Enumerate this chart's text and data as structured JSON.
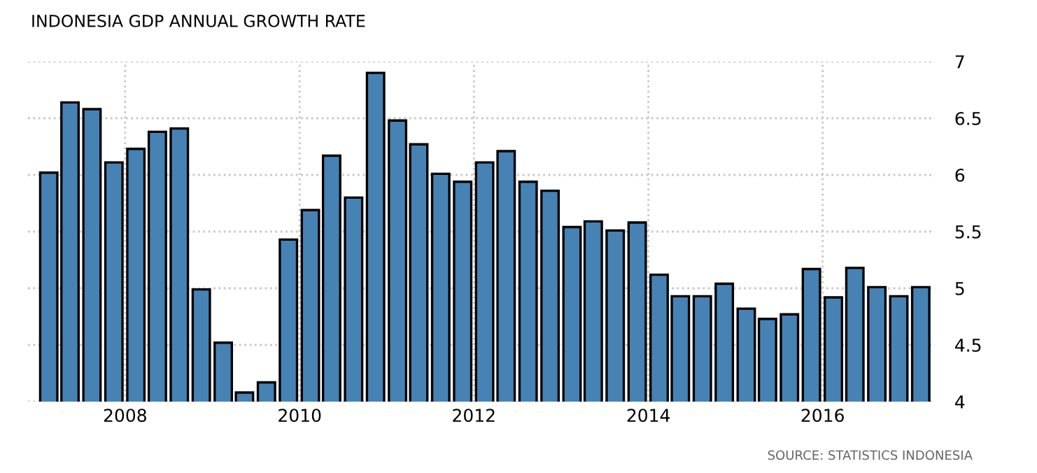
{
  "chart_data": {
    "type": "bar",
    "title": "INDONESIA GDP ANNUAL GROWTH RATE",
    "x": [
      "2007-02-15",
      "2007-05-15",
      "2007-08-15",
      "2007-11-15",
      "2008-02-15",
      "2008-05-15",
      "2008-08-15",
      "2008-11-15",
      "2009-02-15",
      "2009-05-15",
      "2009-08-15",
      "2009-11-15",
      "2010-02-15",
      "2010-05-15",
      "2010-08-15",
      "2010-11-15",
      "2011-02-15",
      "2011-05-15",
      "2011-08-15",
      "2011-11-15",
      "2012-02-15",
      "2012-05-15",
      "2012-08-15",
      "2012-11-15",
      "2013-02-15",
      "2013-05-15",
      "2013-08-15",
      "2013-11-15",
      "2014-02-15",
      "2014-05-15",
      "2014-08-15",
      "2014-11-15",
      "2015-02-15",
      "2015-05-15",
      "2015-08-15",
      "2015-11-15",
      "2016-02-15",
      "2016-05-15",
      "2016-08-15",
      "2016-11-15",
      "2017-02-15"
    ],
    "values": [
      6.02,
      6.64,
      6.58,
      6.11,
      6.23,
      6.38,
      6.41,
      4.99,
      4.52,
      4.08,
      4.17,
      5.43,
      5.69,
      6.17,
      5.8,
      6.9,
      6.48,
      6.27,
      6.01,
      5.94,
      6.11,
      6.21,
      5.94,
      5.86,
      5.54,
      5.59,
      5.51,
      5.58,
      5.12,
      4.93,
      4.93,
      5.04,
      4.82,
      4.73,
      4.77,
      5.17,
      4.92,
      5.18,
      5.01,
      4.93,
      5.01
    ],
    "color": "#4682b4",
    "xlim": [
      "2006-11-20",
      "2017-04-15"
    ],
    "xticks": [
      {
        "value": "2008-01-01",
        "label": "2008"
      },
      {
        "value": "2010-01-01",
        "label": "2010"
      },
      {
        "value": "2012-01-01",
        "label": "2012"
      },
      {
        "value": "2014-01-01",
        "label": "2014"
      },
      {
        "value": "2016-01-01",
        "label": "2016"
      }
    ],
    "ylim": [
      4,
      7
    ],
    "yticks": [
      4,
      4.5,
      5,
      5.5,
      6,
      6.5,
      7
    ],
    "grid": true,
    "annotations": [
      "SOURCE: STATISTICS INDONESIA"
    ]
  }
}
